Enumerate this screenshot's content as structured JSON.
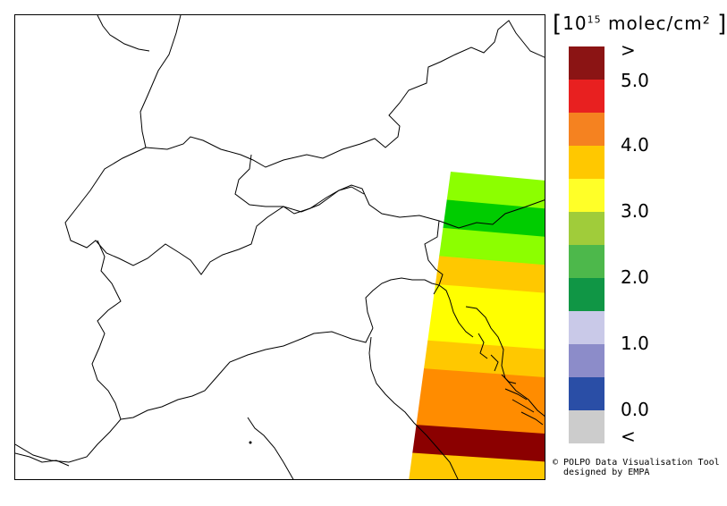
{
  "legend": {
    "unit_prefix": "10",
    "unit_exponent": "15",
    "unit_suffix": " molec/cm²",
    "labels": {
      "top": ">",
      "v5": "5.0",
      "v4": "4.0",
      "v3": "3.0",
      "v2": "2.0",
      "v1": "1.0",
      "v0": "0.0",
      "bottom": "<"
    },
    "colors": [
      "#8b1414",
      "#e82020",
      "#f58220",
      "#ffc800",
      "#ffff28",
      "#a0cc3a",
      "#4db84b",
      "#109645",
      "#c9c9e8",
      "#8c8cc9",
      "#2a4ea6",
      "#cccccc"
    ]
  },
  "map": {
    "swath_colors": [
      "#8cff00",
      "#00cc00",
      "#8cff00",
      "#ffc800",
      "#ffff00",
      "#ffff00",
      "#ffc800",
      "#ff8c00",
      "#ff8c00",
      "#8b0000",
      "#ffc800"
    ],
    "border_color": "#000000"
  },
  "credit": {
    "line1": "© POLPO Data Visualisation Tool",
    "line2": "  designed by EMPA"
  }
}
